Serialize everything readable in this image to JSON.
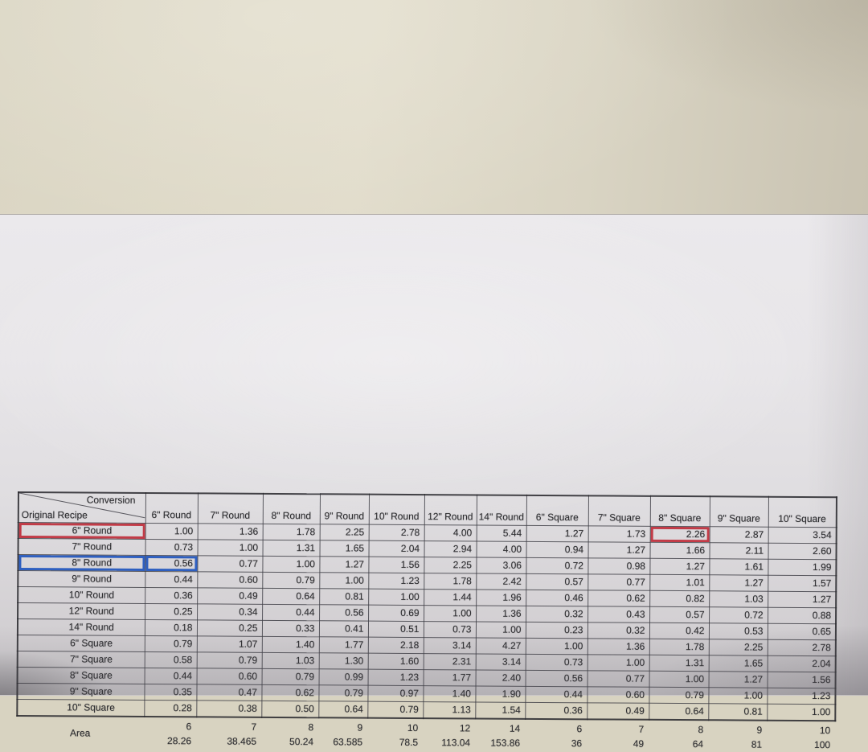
{
  "document": {
    "corner": {
      "diagonal_top_label": "Conversion",
      "diagonal_bottom_label": "Original Recipe"
    },
    "columns": [
      "6\" Round",
      "7\" Round",
      "8\" Round",
      "9\" Round",
      "10\" Round",
      "12\" Round",
      "14\" Round",
      "6\" Square",
      "7\" Square",
      "8\" Square",
      "9\" Square",
      "10\" Square"
    ],
    "rows": [
      {
        "label": "6\" Round",
        "values": [
          "1.00",
          "1.36",
          "1.78",
          "2.25",
          "2.78",
          "4.00",
          "5.44",
          "1.27",
          "1.73",
          "2.26",
          "2.87",
          "3.54"
        ]
      },
      {
        "label": "7\" Round",
        "values": [
          "0.73",
          "1.00",
          "1.31",
          "1.65",
          "2.04",
          "2.94",
          "4.00",
          "0.94",
          "1.27",
          "1.66",
          "2.11",
          "2.60"
        ]
      },
      {
        "label": "8\" Round",
        "values": [
          "0.56",
          "0.77",
          "1.00",
          "1.27",
          "1.56",
          "2.25",
          "3.06",
          "0.72",
          "0.98",
          "1.27",
          "1.61",
          "1.99"
        ]
      },
      {
        "label": "9\" Round",
        "values": [
          "0.44",
          "0.60",
          "0.79",
          "1.00",
          "1.23",
          "1.78",
          "2.42",
          "0.57",
          "0.77",
          "1.01",
          "1.27",
          "1.57"
        ]
      },
      {
        "label": "10\" Round",
        "values": [
          "0.36",
          "0.49",
          "0.64",
          "0.81",
          "1.00",
          "1.44",
          "1.96",
          "0.46",
          "0.62",
          "0.82",
          "1.03",
          "1.27"
        ]
      },
      {
        "label": "12\" Round",
        "values": [
          "0.25",
          "0.34",
          "0.44",
          "0.56",
          "0.69",
          "1.00",
          "1.36",
          "0.32",
          "0.43",
          "0.57",
          "0.72",
          "0.88"
        ]
      },
      {
        "label": "14\" Round",
        "values": [
          "0.18",
          "0.25",
          "0.33",
          "0.41",
          "0.51",
          "0.73",
          "1.00",
          "0.23",
          "0.32",
          "0.42",
          "0.53",
          "0.65"
        ]
      },
      {
        "label": "6\" Square",
        "values": [
          "0.79",
          "1.07",
          "1.40",
          "1.77",
          "2.18",
          "3.14",
          "4.27",
          "1.00",
          "1.36",
          "1.78",
          "2.25",
          "2.78"
        ]
      },
      {
        "label": "7\" Square",
        "values": [
          "0.58",
          "0.79",
          "1.03",
          "1.30",
          "1.60",
          "2.31",
          "3.14",
          "0.73",
          "1.00",
          "1.31",
          "1.65",
          "2.04"
        ]
      },
      {
        "label": "8\" Square",
        "values": [
          "0.44",
          "0.60",
          "0.79",
          "0.99",
          "1.23",
          "1.77",
          "2.40",
          "0.56",
          "0.77",
          "1.00",
          "1.27",
          "1.56"
        ]
      },
      {
        "label": "9\" Square",
        "values": [
          "0.35",
          "0.47",
          "0.62",
          "0.79",
          "0.97",
          "1.40",
          "1.90",
          "0.44",
          "0.60",
          "0.79",
          "1.00",
          "1.23"
        ]
      },
      {
        "label": "10\" Square",
        "values": [
          "0.28",
          "0.38",
          "0.50",
          "0.64",
          "0.79",
          "1.13",
          "1.54",
          "0.36",
          "0.49",
          "0.64",
          "0.81",
          "1.00"
        ]
      }
    ],
    "area_section": {
      "label": "Area",
      "sizes": [
        "6",
        "7",
        "8",
        "9",
        "10",
        "12",
        "14",
        "6",
        "7",
        "8",
        "9",
        "10"
      ],
      "areas": [
        "28.26",
        "38.465",
        "50.24",
        "63.585",
        "78.5",
        "113.04",
        "153.86",
        "36",
        "49",
        "64",
        "81",
        "100"
      ]
    },
    "highlights": [
      {
        "row": 0,
        "col": "label",
        "color": "#c23b47",
        "name": "red-box-6round-row-label"
      },
      {
        "row": 0,
        "col": 9,
        "color": "#c23b47",
        "name": "red-box-6round-to-8square-value"
      },
      {
        "row": 2,
        "col": "label",
        "color": "#2e5fc0",
        "name": "blue-box-8round-row-label"
      },
      {
        "row": 2,
        "col": 0,
        "color": "#2e5fc0",
        "name": "blue-box-8round-to-6round-value"
      }
    ],
    "annotation_colors": {
      "red": "#c23b47",
      "blue": "#2e5fc0"
    }
  }
}
